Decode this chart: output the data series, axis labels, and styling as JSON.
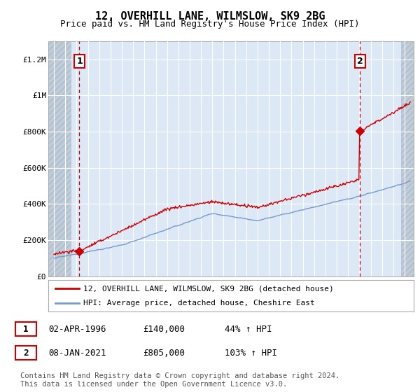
{
  "title": "12, OVERHILL LANE, WILMSLOW, SK9 2BG",
  "subtitle": "Price paid vs. HM Land Registry's House Price Index (HPI)",
  "ylim": [
    0,
    1300000
  ],
  "xlim_start": 1993.5,
  "xlim_end": 2025.8,
  "hatch_left_end": 1995.5,
  "hatch_right_start": 2024.7,
  "yticks": [
    0,
    200000,
    400000,
    600000,
    800000,
    1000000,
    1200000
  ],
  "ytick_labels": [
    "£0",
    "£200K",
    "£400K",
    "£600K",
    "£800K",
    "£1M",
    "£1.2M"
  ],
  "xticks": [
    1994,
    1995,
    1996,
    1997,
    1998,
    1999,
    2000,
    2001,
    2002,
    2003,
    2004,
    2005,
    2006,
    2007,
    2008,
    2009,
    2010,
    2011,
    2012,
    2013,
    2014,
    2015,
    2016,
    2017,
    2018,
    2019,
    2020,
    2021,
    2022,
    2023,
    2024,
    2025
  ],
  "legend_line1": "12, OVERHILL LANE, WILMSLOW, SK9 2BG (detached house)",
  "legend_line2": "HPI: Average price, detached house, Cheshire East",
  "sale1_x": 1996.25,
  "sale1_y": 140000,
  "sale2_x": 2021.05,
  "sale2_y": 805000,
  "table_row1": [
    "1",
    "02-APR-1996",
    "£140,000",
    "44% ↑ HPI"
  ],
  "table_row2": [
    "2",
    "08-JAN-2021",
    "£805,000",
    "103% ↑ HPI"
  ],
  "footnote": "Contains HM Land Registry data © Crown copyright and database right 2024.\nThis data is licensed under the Open Government Licence v3.0.",
  "line_color_red": "#cc0000",
  "line_color_blue": "#7799cc",
  "plot_bg_color": "#dce8f5",
  "hatch_color": "#c0ccd8",
  "grid_color": "#ffffff",
  "title_fontsize": 11,
  "subtitle_fontsize": 9,
  "tick_fontsize": 8,
  "legend_fontsize": 8,
  "table_fontsize": 9,
  "footnote_fontsize": 7.5
}
